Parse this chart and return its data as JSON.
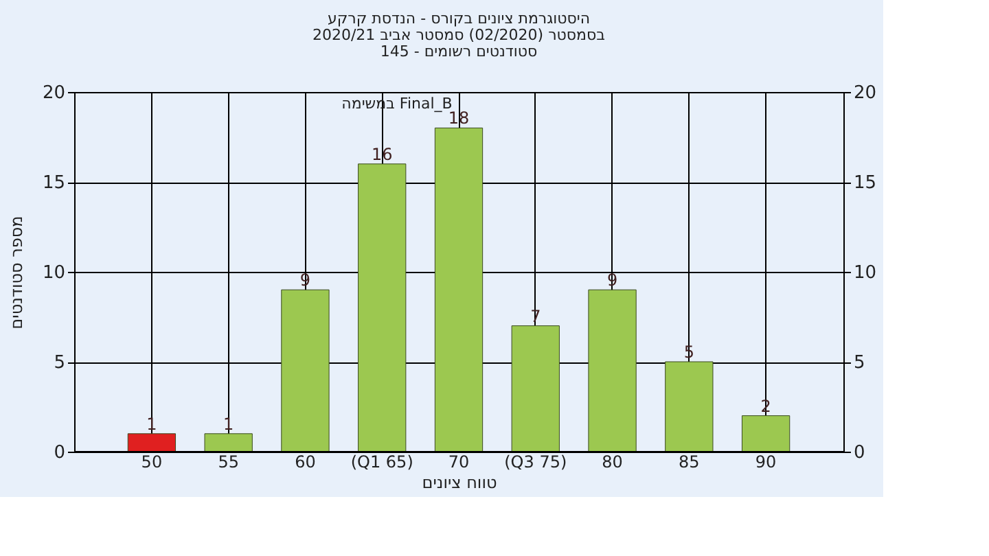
{
  "chart_data": {
    "type": "bar",
    "title": [
      "היסטוגרמת ציונים בקורס - הנדסת קרקע",
      "בסמסטר  (02/2020)  סמסטר אביב 2020/21",
      "סטודנטים רשומים - 145"
    ],
    "xlabel": "טווח ציונים",
    "ylabel": "מספר סטודנטים",
    "categories": [
      "50",
      "55",
      "60",
      "(Q1 65)",
      "70",
      "(Q3 75)",
      "80",
      "85",
      "90"
    ],
    "series": [
      {
        "colors": [
          "#e02020",
          "#9cc850",
          "#9cc850",
          "#9cc850",
          "#9cc850",
          "#9cc850",
          "#9cc850",
          "#9cc850",
          "#9cc850"
        ],
        "values": [
          1,
          1,
          9,
          16,
          18,
          7,
          9,
          5,
          2
        ]
      }
    ],
    "data_labels": true,
    "ylim": [
      0,
      20
    ],
    "yticks": [
      0,
      5,
      10,
      15,
      20
    ],
    "y2lim": [
      0,
      20
    ],
    "y2ticks": [
      0,
      5,
      10,
      15,
      20
    ],
    "grid": true,
    "annotations": [
      "במשימה Final_B"
    ]
  }
}
